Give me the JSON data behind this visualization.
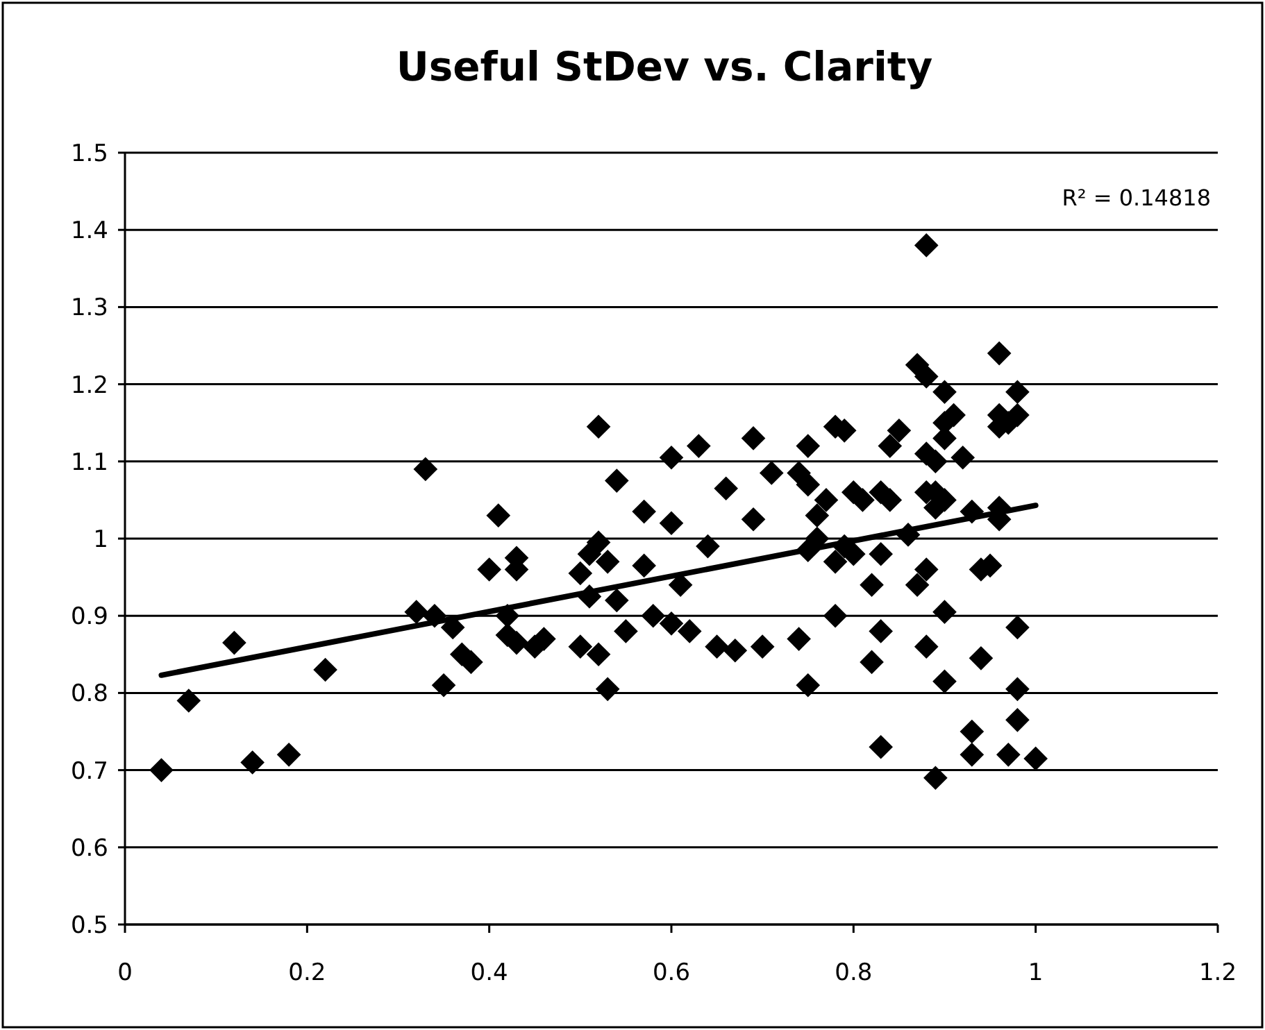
{
  "chart_data": {
    "type": "scatter",
    "title": "Useful StDev vs. Clarity",
    "annotations": [
      "R² = 0.14818"
    ],
    "xlim": [
      0,
      1.2
    ],
    "xticks": [
      0,
      0.2,
      0.4,
      0.6,
      0.8,
      1,
      1.2
    ],
    "ylim": [
      0.5,
      1.5
    ],
    "yticks": [
      0.5,
      0.6,
      0.7,
      0.8,
      0.9,
      1,
      1.1,
      1.2,
      1.3,
      1.4,
      1.5
    ],
    "grid": "y",
    "series": [
      {
        "marker": "diamond",
        "color": "#000000",
        "x": [
          0.04,
          0.07,
          0.12,
          0.14,
          0.18,
          0.22,
          0.32,
          0.33,
          0.34,
          0.35,
          0.36,
          0.37,
          0.38,
          0.4,
          0.41,
          0.42,
          0.43,
          0.43,
          0.43,
          0.42,
          0.45,
          0.46,
          0.5,
          0.5,
          0.51,
          0.51,
          0.52,
          0.52,
          0.52,
          0.53,
          0.53,
          0.54,
          0.54,
          0.55,
          0.57,
          0.57,
          0.58,
          0.6,
          0.6,
          0.6,
          0.61,
          0.62,
          0.63,
          0.64,
          0.65,
          0.66,
          0.67,
          0.69,
          0.69,
          0.7,
          0.71,
          0.74,
          0.74,
          0.75,
          0.75,
          0.75,
          0.76,
          0.76,
          0.75,
          0.77,
          0.78,
          0.79,
          0.78,
          0.78,
          0.79,
          0.8,
          0.8,
          0.81,
          0.82,
          0.82,
          0.83,
          0.83,
          0.83,
          0.83,
          0.84,
          0.84,
          0.85,
          0.86,
          0.87,
          0.87,
          0.88,
          0.88,
          0.88,
          0.88,
          0.88,
          0.88,
          0.89,
          0.89,
          0.89,
          0.89,
          0.9,
          0.9,
          0.9,
          0.9,
          0.9,
          0.9,
          0.91,
          0.92,
          0.93,
          0.93,
          0.93,
          0.94,
          0.94,
          0.95,
          0.96,
          0.96,
          0.96,
          0.96,
          0.96,
          0.97,
          0.97,
          0.98,
          0.98,
          0.98,
          0.98,
          0.98,
          1.0
        ],
        "values": [
          0.7,
          0.79,
          0.865,
          0.71,
          0.72,
          0.83,
          0.905,
          1.09,
          0.9,
          0.81,
          0.885,
          0.85,
          0.84,
          0.96,
          1.03,
          0.875,
          0.865,
          0.96,
          0.975,
          0.9,
          0.86,
          0.87,
          0.86,
          0.955,
          0.98,
          0.925,
          1.145,
          0.995,
          0.85,
          0.805,
          0.97,
          1.075,
          0.92,
          0.88,
          1.035,
          0.965,
          0.9,
          1.105,
          1.02,
          0.89,
          0.94,
          0.88,
          1.12,
          0.99,
          0.86,
          1.065,
          0.855,
          1.13,
          1.025,
          0.86,
          1.085,
          1.085,
          0.87,
          1.07,
          0.81,
          1.12,
          1.03,
          1.0,
          0.985,
          1.05,
          1.145,
          1.14,
          0.97,
          0.9,
          0.99,
          1.06,
          0.98,
          1.05,
          0.94,
          0.84,
          1.06,
          0.98,
          0.88,
          0.73,
          1.05,
          1.12,
          1.14,
          1.005,
          1.225,
          0.94,
          1.21,
          1.38,
          1.11,
          1.06,
          0.86,
          0.96,
          1.04,
          1.1,
          1.06,
          0.69,
          1.19,
          1.15,
          1.13,
          1.05,
          0.905,
          0.815,
          1.16,
          1.105,
          1.035,
          0.75,
          0.72,
          0.96,
          0.845,
          0.965,
          1.24,
          1.16,
          1.145,
          1.04,
          1.025,
          1.15,
          0.72,
          1.19,
          1.16,
          0.885,
          0.805,
          0.765,
          0.715
        ]
      },
      {
        "type": "line",
        "color": "#000000",
        "x": [
          0.04,
          1.0
        ],
        "values": [
          0.823,
          1.043
        ]
      }
    ]
  }
}
